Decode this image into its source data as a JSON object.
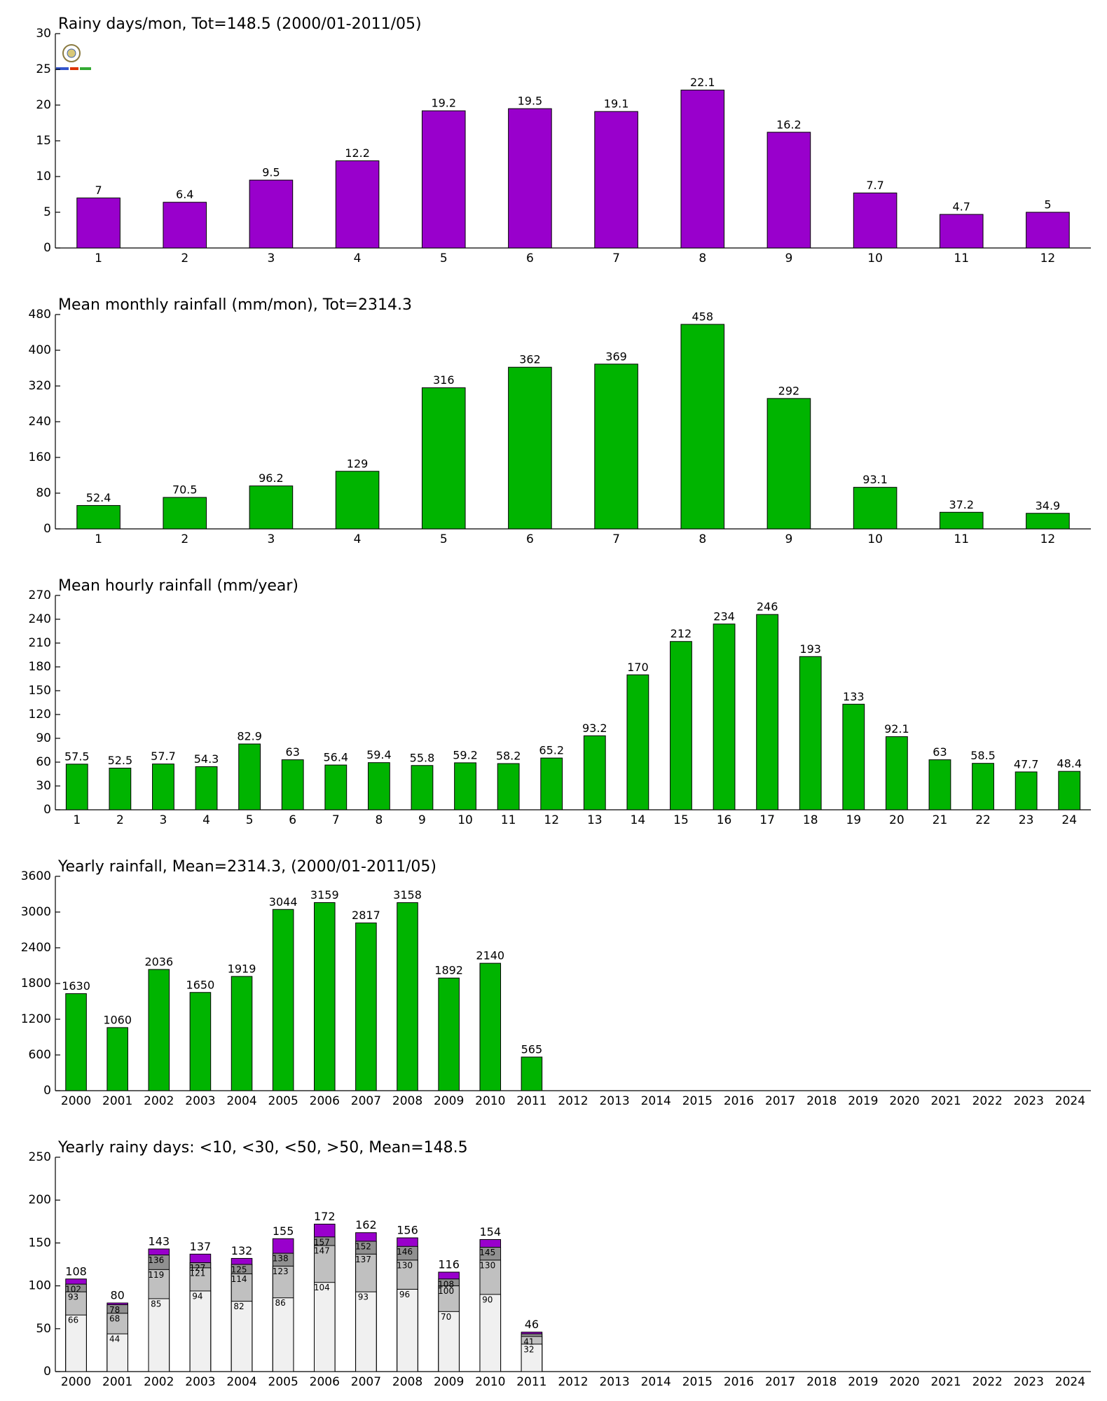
{
  "chart_data": [
    {
      "type": "bar",
      "title": "Rainy days/mon, Tot=148.5 (2000/01-2011/05)",
      "categories": [
        "1",
        "2",
        "3",
        "4",
        "5",
        "6",
        "7",
        "8",
        "9",
        "10",
        "11",
        "12"
      ],
      "values": [
        7,
        6.4,
        9.5,
        12.2,
        19.2,
        19.5,
        19.1,
        22.1,
        16.2,
        7.7,
        4.7,
        5
      ],
      "color": "#9900cc",
      "ylim": [
        0,
        30
      ],
      "yticks": [
        0,
        5,
        10,
        15,
        20,
        25,
        30
      ]
    },
    {
      "type": "bar",
      "title": "Mean monthly rainfall (mm/mon), Tot=2314.3",
      "categories": [
        "1",
        "2",
        "3",
        "4",
        "5",
        "6",
        "7",
        "8",
        "9",
        "10",
        "11",
        "12"
      ],
      "values": [
        52.4,
        70.5,
        96.2,
        129,
        316,
        362,
        369,
        458,
        292,
        93.1,
        37.2,
        34.9
      ],
      "color": "#00b400",
      "ylim": [
        0,
        480
      ],
      "yticks": [
        0,
        80,
        160,
        240,
        320,
        400,
        480
      ]
    },
    {
      "type": "bar",
      "title": "Mean hourly rainfall (mm/year)",
      "categories": [
        "1",
        "2",
        "3",
        "4",
        "5",
        "6",
        "7",
        "8",
        "9",
        "10",
        "11",
        "12",
        "13",
        "14",
        "15",
        "16",
        "17",
        "18",
        "19",
        "20",
        "21",
        "22",
        "23",
        "24"
      ],
      "values": [
        57.5,
        52.5,
        57.7,
        54.3,
        82.9,
        63,
        56.4,
        59.4,
        55.8,
        59.2,
        58.2,
        65.2,
        93.2,
        170,
        212,
        234,
        246,
        193,
        133,
        92.1,
        63,
        58.5,
        47.7,
        48.4
      ],
      "color": "#00b400",
      "ylim": [
        0,
        270
      ],
      "yticks": [
        0,
        30,
        60,
        90,
        120,
        150,
        180,
        210,
        240,
        270
      ]
    },
    {
      "type": "bar",
      "title": "Yearly rainfall, Mean=2314.3, (2000/01-2011/05)",
      "categories": [
        "2000",
        "2001",
        "2002",
        "2003",
        "2004",
        "2005",
        "2006",
        "2007",
        "2008",
        "2009",
        "2010",
        "2011",
        "2012",
        "2013",
        "2014",
        "2015",
        "2016",
        "2017",
        "2018",
        "2019",
        "2020",
        "2021",
        "2022",
        "2023",
        "2024"
      ],
      "values": [
        1630,
        1060,
        2036,
        1650,
        1919,
        3044,
        3159,
        2817,
        3158,
        1892,
        2140,
        565,
        null,
        null,
        null,
        null,
        null,
        null,
        null,
        null,
        null,
        null,
        null,
        null,
        null
      ],
      "color": "#00b400",
      "ylim": [
        0,
        3600
      ],
      "yticks": [
        0,
        600,
        1200,
        1800,
        2400,
        3000,
        3600
      ]
    },
    {
      "type": "bar",
      "title": "Yearly rainy days: <10, <30, <50, >50, Mean=148.5",
      "categories": [
        "2000",
        "2001",
        "2002",
        "2003",
        "2004",
        "2005",
        "2006",
        "2007",
        "2008",
        "2009",
        "2010",
        "2011",
        "2012",
        "2013",
        "2014",
        "2015",
        "2016",
        "2017",
        "2018",
        "2019",
        "2020",
        "2021",
        "2022",
        "2023",
        "2024"
      ],
      "series": [
        {
          "color": "#f0f0f0",
          "values": [
            66,
            44,
            85,
            94,
            82,
            86,
            104,
            93,
            96,
            70,
            90,
            32,
            null,
            null,
            null,
            null,
            null,
            null,
            null,
            null,
            null,
            null,
            null,
            null,
            null
          ]
        },
        {
          "color": "#c0c0c0",
          "values": [
            93,
            68,
            119,
            121,
            114,
            123,
            147,
            137,
            130,
            100,
            130,
            41,
            null,
            null,
            null,
            null,
            null,
            null,
            null,
            null,
            null,
            null,
            null,
            null,
            null
          ]
        },
        {
          "color": "#909090",
          "values": [
            102,
            78,
            136,
            127,
            125,
            138,
            157,
            152,
            146,
            108,
            145,
            44,
            null,
            null,
            null,
            null,
            null,
            null,
            null,
            null,
            null,
            null,
            null,
            null,
            null
          ],
          "value_labels": [
            "102",
            "78",
            "136",
            "127",
            "125",
            "138",
            "157",
            "152",
            "146",
            "108",
            "145",
            null,
            null,
            null,
            null,
            null,
            null,
            null,
            null,
            null,
            null,
            null,
            null,
            null,
            null
          ]
        },
        {
          "color": "#9900cc",
          "values": [
            108,
            80,
            143,
            137,
            132,
            155,
            172,
            162,
            156,
            116,
            154,
            46,
            null,
            null,
            null,
            null,
            null,
            null,
            null,
            null,
            null,
            null,
            null,
            null,
            null
          ]
        }
      ],
      "ylim": [
        0,
        250
      ],
      "yticks": [
        0,
        50,
        100,
        150,
        200,
        250
      ]
    }
  ]
}
